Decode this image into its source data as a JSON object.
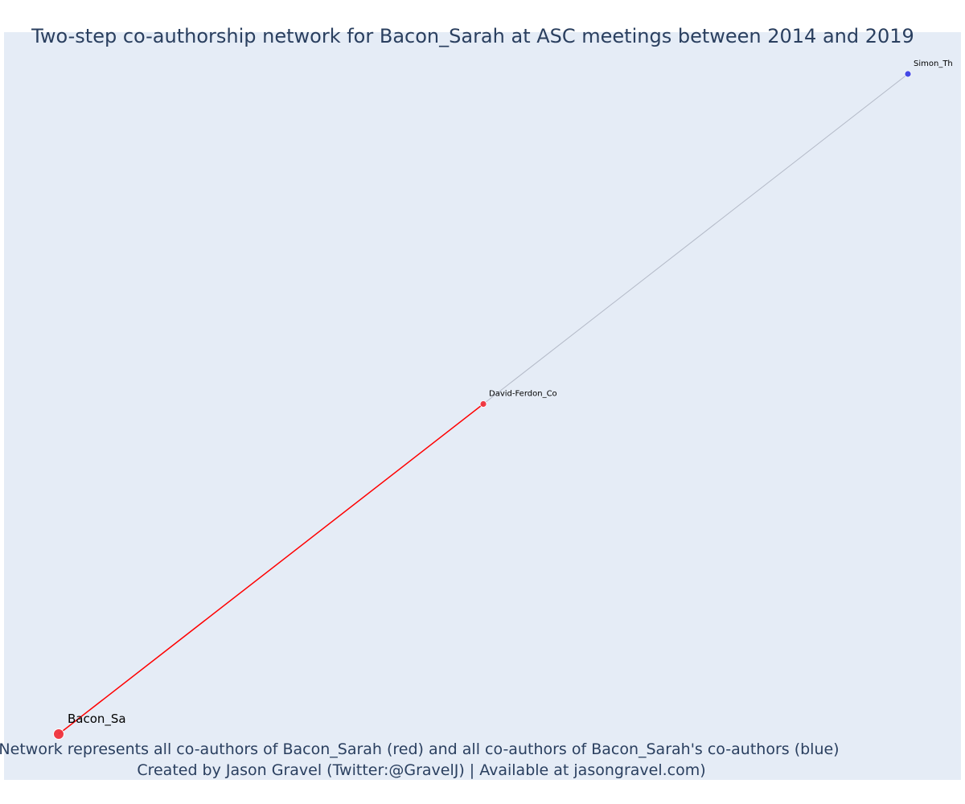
{
  "title": "Two-step co-authorship network for Bacon_Sarah at ASC meetings between 2014 and 2019",
  "footer": {
    "line1": "Network represents all co-authors of Bacon_Sarah (red) and all co-authors of Bacon_Sarah's co-authors (blue)",
    "line2": "Created by Jason Gravel (Twitter:@GravelJ) | Available at jasongravel.com)"
  },
  "colors": {
    "background": "#e5ecf6",
    "title": "#2a3f5f",
    "focal_node": "#f0323c",
    "coauthor_node": "#f0323c",
    "second_step_node": "#3c41e6",
    "direct_edge": "#ff0000",
    "indirect_edge": "#b4bac8"
  },
  "chart_data": {
    "type": "network",
    "nodes": [
      {
        "id": "Bacon_Sa",
        "label": "Bacon_Sa",
        "group": "focal",
        "x": 0.0,
        "y": 0.0
      },
      {
        "id": "David-Ferdon_Co",
        "label": "David-Ferdon_Co",
        "group": "coauthor",
        "x": 0.5,
        "y": 0.5
      },
      {
        "id": "Simon_Th",
        "label": "Simon_Th",
        "group": "second_step",
        "x": 1.0,
        "y": 1.0
      }
    ],
    "edges": [
      {
        "source": "Bacon_Sa",
        "target": "David-Ferdon_Co",
        "kind": "direct"
      },
      {
        "source": "David-Ferdon_Co",
        "target": "Simon_Th",
        "kind": "indirect"
      }
    ],
    "grid": false
  }
}
